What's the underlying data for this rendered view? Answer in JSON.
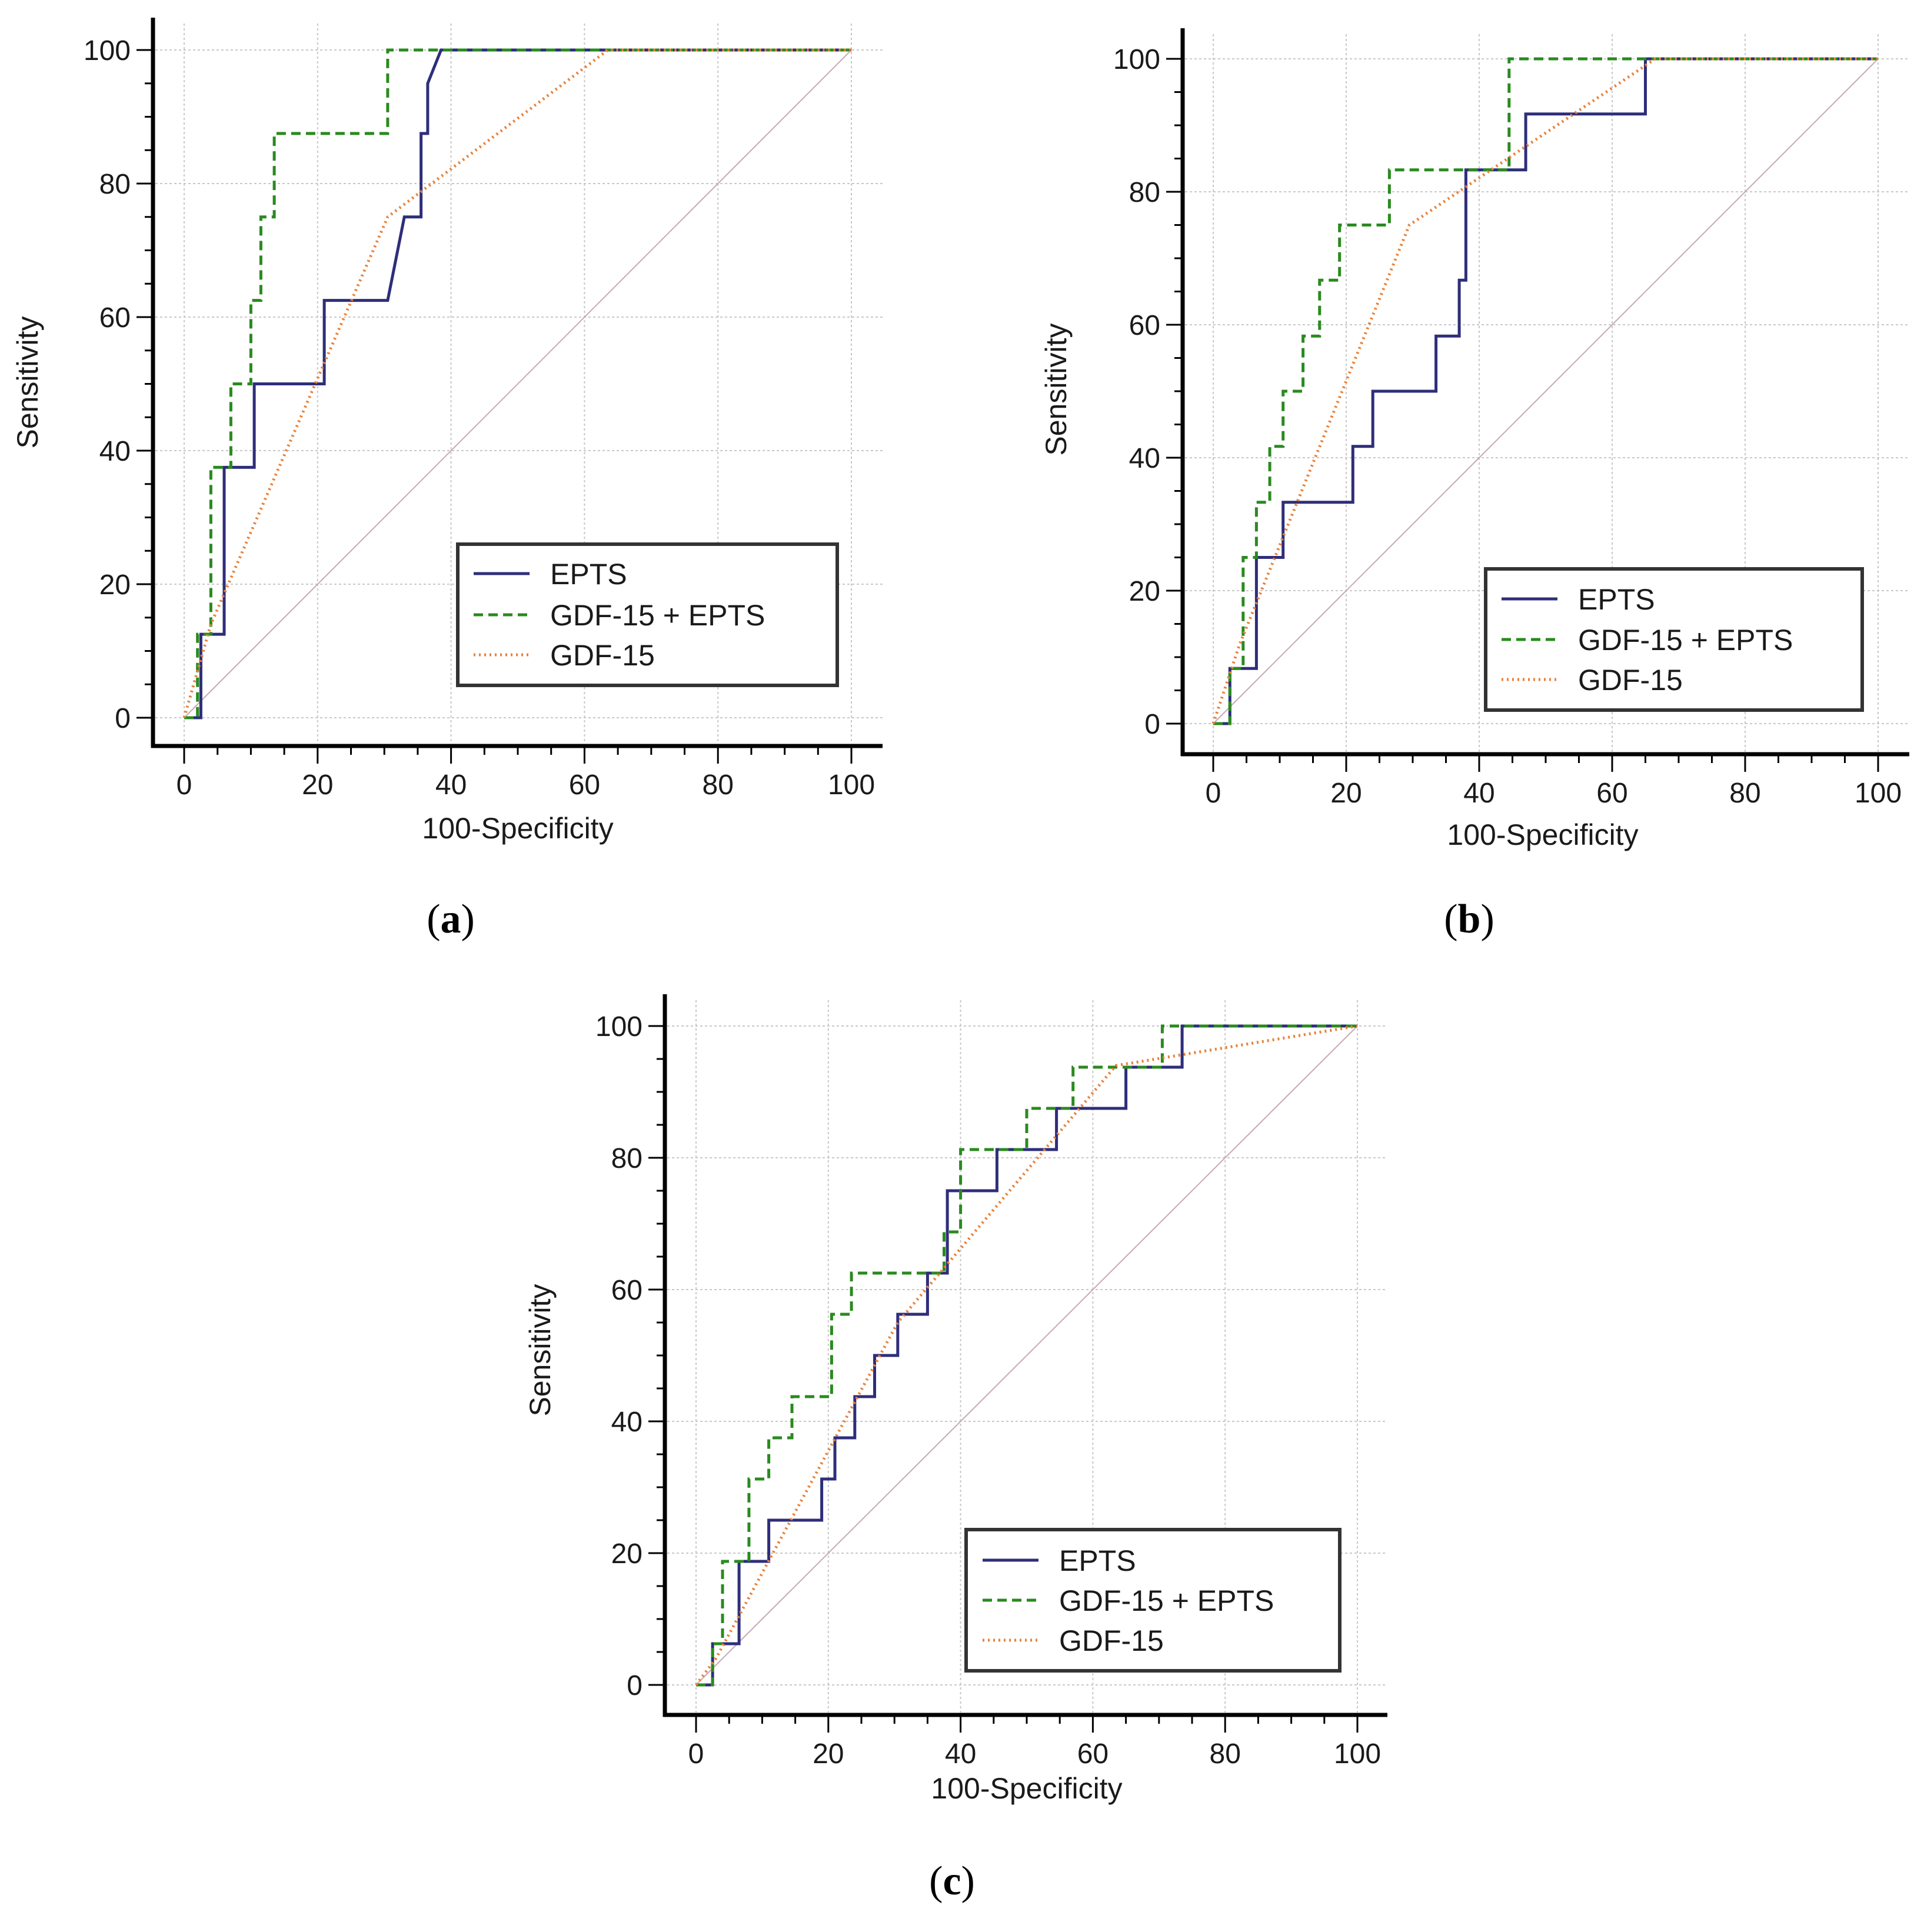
{
  "colors": {
    "epts": "#2e2e7a",
    "combined": "#2a8a1f",
    "gdf15": "#e8823a",
    "diagonal": "#c9a9b3"
  },
  "chart_data": [
    {
      "id": "a",
      "panel_label": "a",
      "type": "line",
      "xlabel": "100-Specificity",
      "ylabel": "Sensitivity",
      "xlim": [
        0,
        100
      ],
      "ylim": [
        0,
        100
      ],
      "xticks": [
        "0",
        "20",
        "40",
        "60",
        "80",
        "100"
      ],
      "yticks": [
        "0",
        "20",
        "40",
        "60",
        "80",
        "100"
      ],
      "legend_position": "bottom-right",
      "series": [
        {
          "key": "epts",
          "name": "EPTS",
          "style": "solid",
          "x": [
            0,
            2.5,
            2.5,
            3.4,
            3.4,
            6.0,
            6.0,
            10.5,
            10.5,
            21.0,
            21.0,
            30.5,
            30.5,
            33.0,
            33.0,
            35.5,
            35.5,
            36.5,
            36.5,
            38.5,
            100
          ],
          "y": [
            0,
            0,
            12.5,
            12.5,
            12.5,
            12.5,
            37.5,
            37.5,
            50,
            50,
            62.5,
            62.5,
            62.5,
            75,
            75,
            75,
            87.5,
            87.5,
            95,
            100,
            100
          ]
        },
        {
          "key": "combined",
          "name": "GDF-15 + EPTS",
          "style": "dashed",
          "x": [
            0,
            2.0,
            2.0,
            4.0,
            4.0,
            7.0,
            7.0,
            10.0,
            10.0,
            11.5,
            11.5,
            13.5,
            13.5,
            30.5,
            30.5,
            100
          ],
          "y": [
            0,
            0,
            12.5,
            12.5,
            37.5,
            37.5,
            50,
            50,
            62.5,
            62.5,
            75,
            75,
            87.5,
            87.5,
            100,
            100
          ]
        },
        {
          "key": "gdf15",
          "name": "GDF-15",
          "style": "dotted",
          "x": [
            0,
            4,
            30.5,
            63.5,
            100
          ],
          "y": [
            0,
            14,
            75,
            100,
            100
          ]
        },
        {
          "key": "diagonal",
          "name": "",
          "style": "diagonal",
          "x": [
            0,
            100
          ],
          "y": [
            0,
            100
          ]
        }
      ]
    },
    {
      "id": "b",
      "panel_label": "b",
      "type": "line",
      "xlabel": "100-Specificity",
      "ylabel": "Sensitivity",
      "xlim": [
        0,
        100
      ],
      "ylim": [
        0,
        100
      ],
      "xticks": [
        "0",
        "20",
        "40",
        "60",
        "80",
        "100"
      ],
      "yticks": [
        "0",
        "20",
        "40",
        "60",
        "80",
        "100"
      ],
      "legend_position": "bottom-right",
      "series": [
        {
          "key": "epts",
          "name": "EPTS",
          "style": "solid",
          "x": [
            0,
            2.5,
            2.5,
            3.5,
            3.5,
            6.5,
            6.5,
            10.5,
            10.5,
            21.0,
            21.0,
            24.0,
            24.0,
            33.5,
            33.5,
            37.0,
            37.0,
            38.0,
            38.0,
            47.0,
            47.0,
            65.0,
            65.0,
            100
          ],
          "y": [
            0,
            0,
            8.3,
            8.3,
            8.3,
            8.3,
            25,
            25,
            33.3,
            33.3,
            41.7,
            41.7,
            50,
            50,
            58.3,
            58.3,
            66.7,
            66.7,
            83.3,
            83.3,
            91.7,
            91.7,
            100,
            100
          ]
        },
        {
          "key": "combined",
          "name": "GDF-15 + EPTS",
          "style": "dashed",
          "x": [
            0,
            2.5,
            2.5,
            4.5,
            4.5,
            6.5,
            6.5,
            8.5,
            8.5,
            10.5,
            10.5,
            13.5,
            13.5,
            16.0,
            16.0,
            19.0,
            19.0,
            26.5,
            26.5,
            44.5,
            44.5,
            100
          ],
          "y": [
            0,
            0,
            8.3,
            8.3,
            25,
            25,
            33.3,
            33.3,
            41.7,
            41.7,
            50,
            50,
            58.3,
            58.3,
            66.7,
            66.7,
            75,
            75,
            83.3,
            83.3,
            100,
            100
          ]
        },
        {
          "key": "gdf15",
          "name": "GDF-15",
          "style": "dotted",
          "x": [
            0,
            4,
            29.5,
            66.5,
            100
          ],
          "y": [
            0,
            12,
            75,
            100,
            100
          ]
        },
        {
          "key": "diagonal",
          "name": "",
          "style": "diagonal",
          "x": [
            0,
            100
          ],
          "y": [
            0,
            100
          ]
        }
      ]
    },
    {
      "id": "c",
      "panel_label": "c",
      "type": "line",
      "xlabel": "100-Specificity",
      "ylabel": "Sensitivity",
      "xlim": [
        0,
        100
      ],
      "ylim": [
        0,
        100
      ],
      "xticks": [
        "0",
        "20",
        "40",
        "60",
        "80",
        "100"
      ],
      "yticks": [
        "0",
        "20",
        "40",
        "60",
        "80",
        "100"
      ],
      "legend_position": "bottom-right",
      "series": [
        {
          "key": "epts",
          "name": "EPTS",
          "style": "solid",
          "x": [
            0,
            2.5,
            2.5,
            6.5,
            6.5,
            11.0,
            11.0,
            19.0,
            19.0,
            21.0,
            21.0,
            24.0,
            24.0,
            27.0,
            27.0,
            30.5,
            30.5,
            35.0,
            35.0,
            38.0,
            38.0,
            45.5,
            45.5,
            54.5,
            54.5,
            65.0,
            65.0,
            73.5,
            73.5,
            100
          ],
          "y": [
            0,
            0,
            6.25,
            6.25,
            18.75,
            18.75,
            25,
            25,
            31.25,
            31.25,
            37.5,
            37.5,
            43.75,
            43.75,
            50,
            50,
            56.25,
            56.25,
            62.5,
            62.5,
            75,
            75,
            81.25,
            81.25,
            87.5,
            87.5,
            93.75,
            93.75,
            100,
            100
          ]
        },
        {
          "key": "combined",
          "name": "GDF-15 + EPTS",
          "style": "dashed",
          "x": [
            0,
            2.5,
            2.5,
            4.0,
            4.0,
            8.0,
            8.0,
            11.0,
            11.0,
            14.5,
            14.5,
            20.5,
            20.5,
            23.5,
            23.5,
            37.5,
            37.5,
            40.0,
            40.0,
            50.0,
            50.0,
            57.0,
            57.0,
            70.5,
            70.5,
            100
          ],
          "y": [
            0,
            0,
            6.25,
            6.25,
            18.75,
            18.75,
            31.25,
            31.25,
            37.5,
            37.5,
            43.75,
            43.75,
            56.25,
            56.25,
            62.5,
            62.5,
            68.75,
            68.75,
            81.25,
            81.25,
            87.5,
            87.5,
            93.75,
            93.75,
            100,
            100
          ]
        },
        {
          "key": "gdf15",
          "name": "GDF-15",
          "style": "dotted",
          "x": [
            0,
            3,
            30.5,
            63.5,
            100
          ],
          "y": [
            0,
            4,
            55,
            94,
            100
          ]
        },
        {
          "key": "diagonal",
          "name": "",
          "style": "diagonal",
          "x": [
            0,
            100
          ],
          "y": [
            0,
            100
          ]
        }
      ]
    }
  ]
}
